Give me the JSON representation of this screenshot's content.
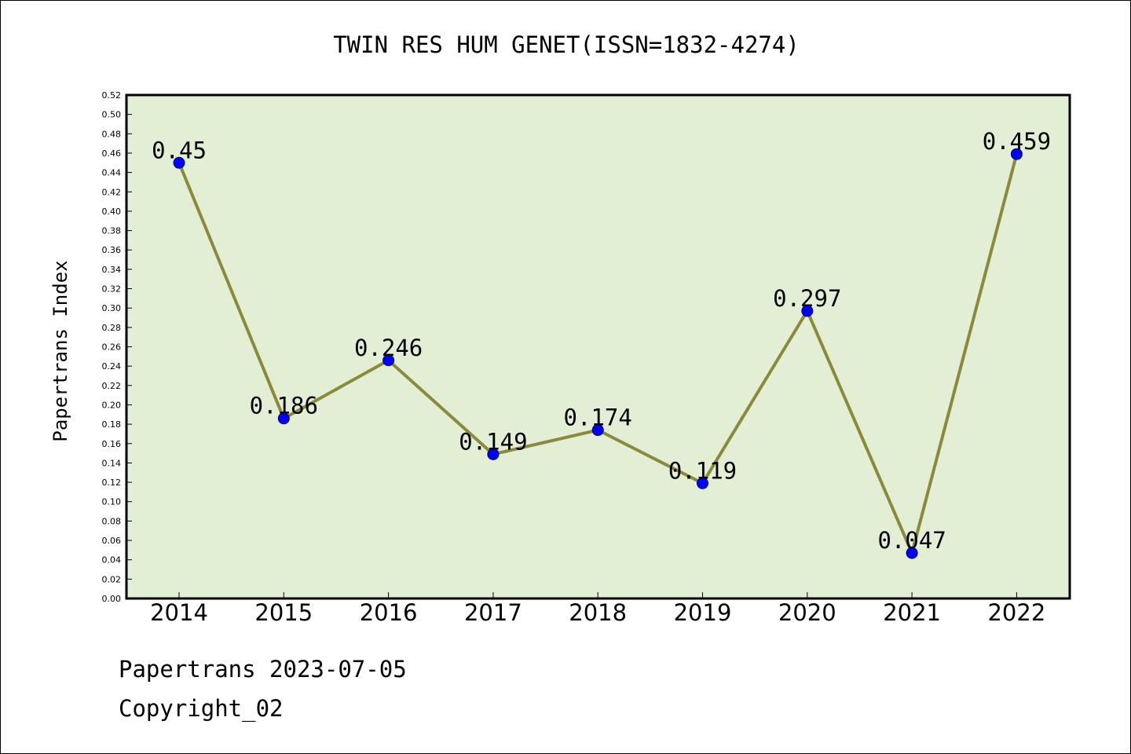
{
  "chart_data": {
    "type": "line",
    "title": "TWIN RES HUM GENET(ISSN=1832-4274)",
    "xlabel": "",
    "ylabel": "Papertrans Index",
    "categories": [
      "2014",
      "2015",
      "2016",
      "2017",
      "2018",
      "2019",
      "2020",
      "2021",
      "2022"
    ],
    "series": [
      {
        "values": [
          0.45,
          0.186,
          0.246,
          0.149,
          0.174,
          0.119,
          0.297,
          0.047,
          0.459
        ],
        "labels": [
          "0.45",
          "0.186",
          "0.246",
          "0.149",
          "0.174",
          "0.119",
          "0.297",
          "0.047",
          "0.459"
        ]
      }
    ],
    "ylim": [
      0,
      0.52
    ],
    "ytick_step": 0.02,
    "grid": false,
    "colors": {
      "plot_background": "#e2efd5",
      "line": "#8b8a3b",
      "marker": "#0000ff"
    }
  },
  "footer": {
    "line1": "Papertrans 2023-07-05",
    "line2": "Copyright_02"
  }
}
